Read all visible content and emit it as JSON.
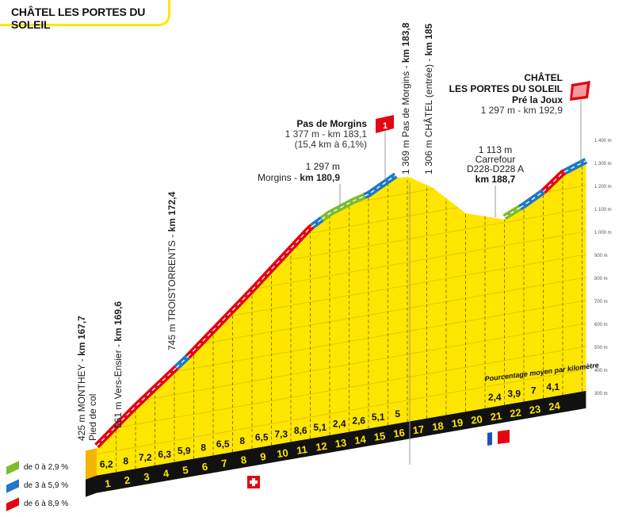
{
  "title": "CHÂTEL LES PORTES DU SOLEIL",
  "legend": [
    {
      "label": "de 0 à 2,9 %",
      "color": "#7dbb2f"
    },
    {
      "label": "de 3 à 5,9 %",
      "color": "#1f78c8"
    },
    {
      "label": "de 6 à 8,9 %",
      "color": "#e30613"
    }
  ],
  "colors": {
    "profile": "#ffe600",
    "grid": "#e0c800",
    "base": "#111111",
    "side": "#f5b400"
  },
  "chart_data": {
    "type": "area",
    "x_unit": "km",
    "y_unit": "m",
    "ylim": [
      300,
      1400
    ],
    "y_ticks": [
      "300 m",
      "400 m",
      "500 m",
      "600 m",
      "700 m",
      "800 m",
      "900 m",
      "1 000 m",
      "1 100 m",
      "1 200 m",
      "1 300 m",
      "1 400 m"
    ],
    "profile": [
      [
        0,
        425
      ],
      [
        1.9,
        561
      ],
      [
        4.7,
        745
      ],
      [
        8,
        986
      ],
      [
        11,
        1214
      ],
      [
        12,
        1261
      ],
      [
        13.2,
        1297
      ],
      [
        14,
        1315
      ],
      [
        15.4,
        1377
      ],
      [
        16.1,
        1369
      ],
      [
        17.3,
        1306
      ],
      [
        19,
        1170
      ],
      [
        21,
        1113
      ],
      [
        22,
        1150
      ],
      [
        23,
        1195
      ],
      [
        24,
        1262
      ],
      [
        25.2,
        1297
      ]
    ],
    "road_segments": [
      [
        0,
        4.1,
        "#e30613"
      ],
      [
        4.1,
        4.7,
        "#1f78c8"
      ],
      [
        4.7,
        11.1,
        "#e30613"
      ],
      [
        11.1,
        11.6,
        "#1f78c8"
      ],
      [
        11.6,
        13.8,
        "#7dbb2f"
      ],
      [
        13.8,
        15.4,
        "#1f78c8"
      ],
      [
        21,
        21.8,
        "#7dbb2f"
      ],
      [
        21.8,
        23,
        "#1f78c8"
      ],
      [
        23,
        24.1,
        "#e30613"
      ],
      [
        24.1,
        25.2,
        "#1f78c8"
      ]
    ],
    "km_labels": [
      "1",
      "2",
      "3",
      "4",
      "5",
      "6",
      "7",
      "8",
      "9",
      "10",
      "11",
      "12",
      "13",
      "14",
      "15",
      "16",
      "17",
      "18",
      "19",
      "20",
      "21",
      "22",
      "23",
      "24"
    ],
    "percentages": [
      "6,2",
      "8",
      "7,2",
      "6,3",
      "5,9",
      "8",
      "6,5",
      "8",
      "6,5",
      "7,3",
      "8,6",
      "5,1",
      "2,4",
      "2,6",
      "5,1",
      "5",
      "",
      "",
      "",
      "",
      "2,4",
      "3,9",
      "7",
      "4,1"
    ],
    "percent_caption": "Pourcentage moyen par kilomètre"
  },
  "annotations": {
    "monthey": {
      "text": "425 m MONTHEY - ",
      "km": "km 167,7",
      "sub": "Pied de col"
    },
    "vers_ensier": {
      "text": "561 m Vers-Ensier - ",
      "km": "km 169,6"
    },
    "troistorrents": {
      "text": "745 m TROISTORRENTS - ",
      "km": "km 172,4"
    },
    "morgins": {
      "alt": "1 297 m",
      "text": "Morgins - ",
      "km": "km 180,9"
    },
    "pas_de_morgins": {
      "name": "Pas de Morgins",
      "line1": "1 377 m - km 183,1",
      "line2": "(15,4 km à 6,1%)",
      "badge": "1"
    },
    "pas_de_morgins_pass": {
      "text": "1 369 m Pas de Morgins - ",
      "km": "km 183,8"
    },
    "chatel_entree": {
      "text": "1 306 m CHÂTEL (entrée) - ",
      "km": "km 185"
    },
    "carrefour": {
      "alt": "1 113 m",
      "line1": "Carrefour",
      "line2": "D228-D228 A",
      "km": "km 188,7"
    },
    "finish": {
      "line1": "CHÂTEL",
      "line2": "LES PORTES DU SOLEIL",
      "line3": "Pré la Joux",
      "line4": "1 297 m - km 192,9"
    }
  },
  "flags": {
    "switzerland": "swiss-flag",
    "france": "french-flag"
  }
}
